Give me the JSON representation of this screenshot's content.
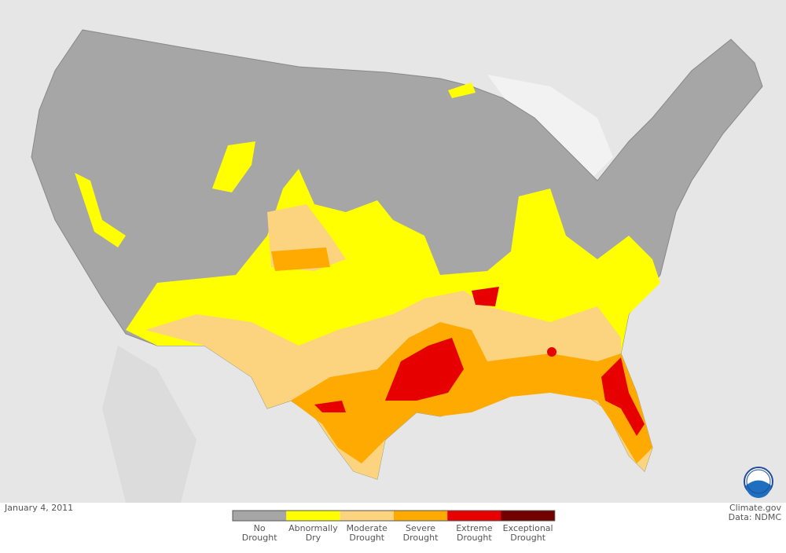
{
  "date": "January 4, 2011",
  "credit": {
    "site": "Climate.gov",
    "source": "Data: NDMC"
  },
  "legend": [
    {
      "lines": [
        "No",
        "Drought"
      ],
      "color": "#a6a6a6"
    },
    {
      "lines": [
        "Abnormally",
        "Dry"
      ],
      "color": "#ffff00"
    },
    {
      "lines": [
        "Moderate",
        "Drought"
      ],
      "color": "#fcd37f"
    },
    {
      "lines": [
        "Severe",
        "Drought"
      ],
      "color": "#ffaa00"
    },
    {
      "lines": [
        "Extreme",
        "Drought"
      ],
      "color": "#e60000"
    },
    {
      "lines": [
        "Exceptional",
        "Drought"
      ],
      "color": "#730000"
    }
  ]
}
